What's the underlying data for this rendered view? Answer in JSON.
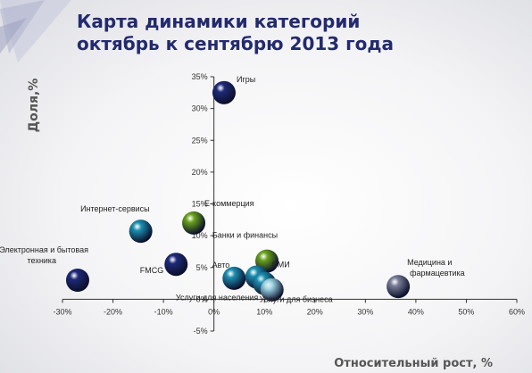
{
  "title": "Карта динамики категорий\nоктябрь к сентябрю 2013 года",
  "chart_data": {
    "type": "scatter",
    "title": "Карта динамики категорий октябрь к сентябрю 2013 года",
    "xlabel": "Относительный рост, %",
    "ylabel": "Доля,%",
    "xlim": [
      -30,
      60
    ],
    "ylim": [
      -5,
      35
    ],
    "x_ticks": [
      "-30%",
      "-20%",
      "-10%",
      "0%",
      "10%",
      "20%",
      "30%",
      "40%",
      "50%",
      "60%"
    ],
    "y_ticks": [
      "-5%",
      "0%",
      "5%",
      "10%",
      "15%",
      "20%",
      "25%",
      "30%",
      "35%"
    ],
    "grid": false,
    "points": [
      {
        "label": "Игры",
        "x": 2.0,
        "y": 32.5,
        "color": "#1e2a78"
      },
      {
        "label": "Е-коммерция",
        "x": -4.0,
        "y": 12.0,
        "color": "#6aa31c"
      },
      {
        "label": "Интернет-сервисы",
        "x": -14.5,
        "y": 10.7,
        "color": "#1c8fb0"
      },
      {
        "label": "Электронная и бытовая техника",
        "x": -27.0,
        "y": 3.0,
        "color": "#1e2a78"
      },
      {
        "label": "FMCG",
        "x": -7.5,
        "y": 5.5,
        "color": "#1e2a78"
      },
      {
        "label": "Банки и финансы",
        "x": 10.5,
        "y": 6.0,
        "color": "#6aa31c"
      },
      {
        "label": "Авто",
        "x": 4.0,
        "y": 3.3,
        "color": "#1c8fb0"
      },
      {
        "label": "СМИ",
        "x": 8.5,
        "y": 3.5,
        "color": "#1c8fb0"
      },
      {
        "label": "Услуги для населения",
        "x": 10.0,
        "y": 2.5,
        "color": "#1c8fb0"
      },
      {
        "label": "Услуги для бизнеса",
        "x": 11.5,
        "y": 1.5,
        "color": "#9fd6e6"
      },
      {
        "label": "Медицина и фармацевтика",
        "x": 36.5,
        "y": 2.0,
        "color": "#7c7e98"
      }
    ]
  }
}
